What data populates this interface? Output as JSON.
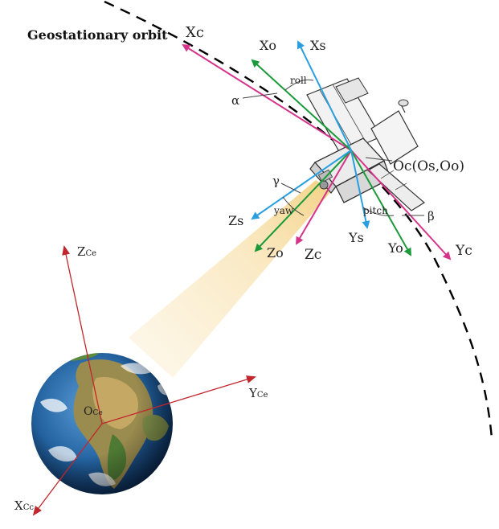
{
  "title": "Geostationary orbit",
  "origin_satellite": "Oc(Os,Oo)",
  "angles": {
    "alpha": "α",
    "gamma": "γ",
    "beta": "β",
    "roll": "roll",
    "yaw": "yaw",
    "pitch": "pitch"
  },
  "axes": {
    "xc": "Xc",
    "yc": "Yc",
    "zc": "Zc",
    "xo": "Xo",
    "yo": "Yo",
    "zo": "Zo",
    "xs": "Xs",
    "ys": "Ys",
    "zs": "Zs"
  },
  "earth_axes": {
    "z_main": "Z",
    "z_sub": "Ce",
    "y_main": "Y",
    "y_sub": "Ce",
    "x_main": "X",
    "x_sub": "Cc",
    "o_main": "O",
    "o_sub": "Ce"
  },
  "colors": {
    "c_frame": "#d6338a",
    "o_frame": "#1a9a3a",
    "s_frame": "#2a9fe0",
    "earth_axes": "#c0272d",
    "orbit": "#000000"
  }
}
